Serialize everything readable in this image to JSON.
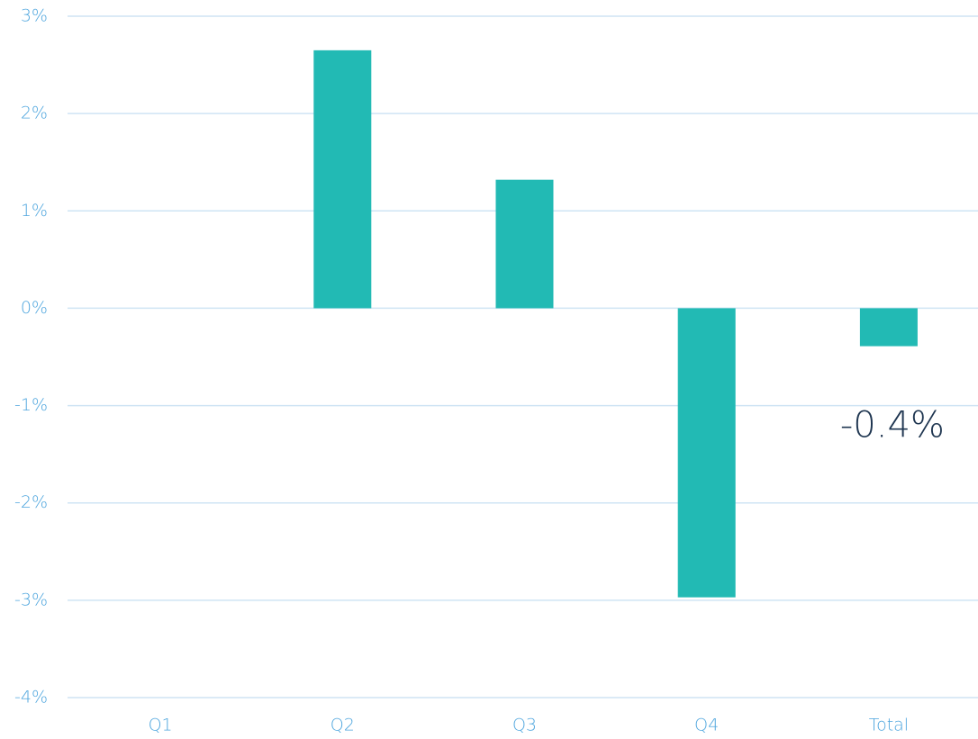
{
  "chart_data": {
    "type": "bar",
    "categories": [
      "Q1",
      "Q2",
      "Q3",
      "Q4",
      "Total"
    ],
    "values": [
      0,
      2.65,
      1.32,
      -2.97,
      -0.39
    ],
    "value_labels": [
      null,
      null,
      null,
      null,
      "-0.4%"
    ],
    "color": "#22bab4",
    "ylim": [
      -4,
      3
    ],
    "yticks": [
      {
        "value": 3,
        "label": "3%"
      },
      {
        "value": 2,
        "label": "2%"
      },
      {
        "value": 1,
        "label": "1%"
      },
      {
        "value": 0,
        "label": "0%"
      },
      {
        "value": -1,
        "label": "-1%"
      },
      {
        "value": -2,
        "label": "-2%"
      },
      {
        "value": -3,
        "label": "-3%"
      },
      {
        "value": -4,
        "label": "-4%"
      }
    ],
    "grid": true
  }
}
